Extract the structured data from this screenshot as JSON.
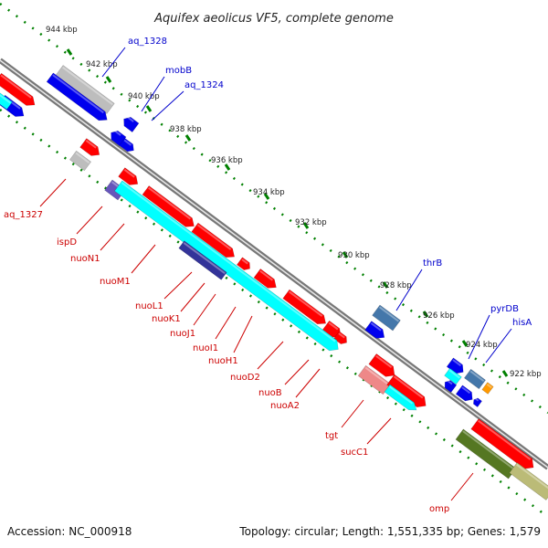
{
  "title": "Aquifex aeolicus VF5, complete genome",
  "footer": {
    "accession": "Accession: NC_000918",
    "topology": "Topology: circular; Length: 1,551,335 bp; Genes: 1,579"
  },
  "colors": {
    "backbone": "#8c8c8c",
    "gene_red": "#ff0000",
    "gene_cyan": "#00ffff",
    "gene_blue": "#0000ee",
    "label_blue": "#0000cc",
    "label_red": "#cc0000",
    "tick_green": "#008000"
  },
  "ruler_ticks": [
    "944 kbp",
    "942 kbp",
    "940 kbp",
    "938 kbp",
    "936 kbp",
    "934 kbp",
    "932 kbp",
    "930 kbp",
    "928 kbp",
    "926 kbp",
    "924 kbp",
    "922 kbp"
  ],
  "labels_outer": [
    "aq_1328",
    "mobB",
    "aq_1324",
    "thrB",
    "pyrDB",
    "hisA"
  ],
  "labels_inner": [
    "aq_1327",
    "ispD",
    "nuoN1",
    "nuoM1",
    "nuoL1",
    "nuoK1",
    "nuoJ1",
    "nuoI1",
    "nuoH1",
    "nuoD2",
    "nuoB",
    "nuoA2",
    "tgt",
    "sucC1",
    "omp"
  ]
}
